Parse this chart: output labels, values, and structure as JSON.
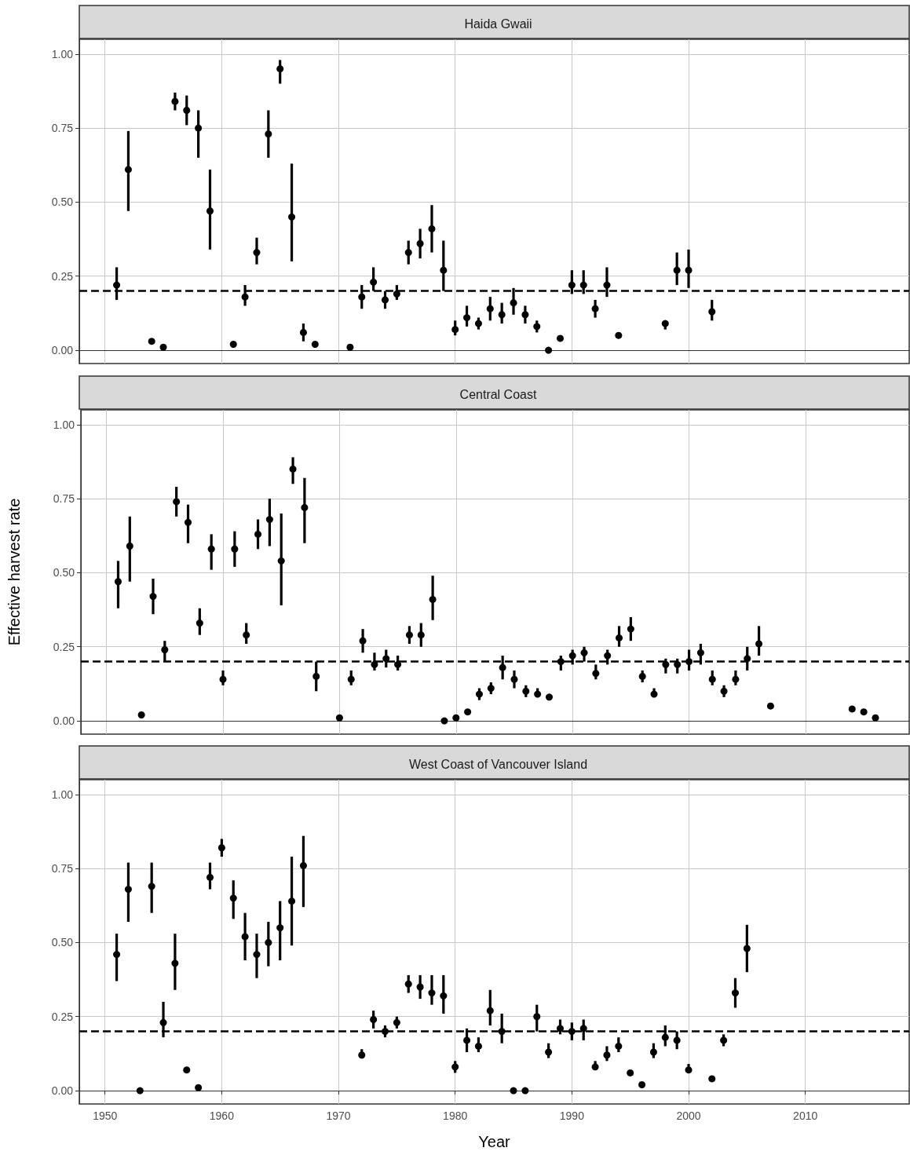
{
  "chart_data": [
    {
      "type": "scatter",
      "title": "Haida Gwaii",
      "tick_labels": "y",
      "grid": true,
      "marker": "circle",
      "xlim": [
        1947.8,
        2018.9
      ],
      "ylim": [
        -0.045,
        1.05
      ],
      "xticks": [
        1950,
        1960,
        1970,
        1980,
        1990,
        2000,
        2010
      ],
      "yticks": [
        {
          "value": 0,
          "label": "0.00"
        },
        {
          "value": 0.25,
          "label": "0.25"
        },
        {
          "value": 0.5,
          "label": "0.50"
        },
        {
          "value": 0.75,
          "label": "0.75"
        },
        {
          "value": 1,
          "label": "1.00"
        }
      ],
      "ref_lines": [
        {
          "axis": "y",
          "value": 0.2,
          "line_style": "dashed",
          "color": "#000000"
        }
      ],
      "series": [
        {
          "color": "#000000",
          "x": [
            1951,
            1952,
            1954,
            1955,
            1956,
            1957,
            1958,
            1959,
            1961,
            1962,
            1963,
            1964,
            1965,
            1966,
            1967,
            1968,
            1971,
            1972,
            1973,
            1974,
            1975,
            1976,
            1977,
            1978,
            1979,
            1980,
            1981,
            1982,
            1983,
            1984,
            1985,
            1986,
            1987,
            1988,
            1989,
            1990,
            1991,
            1992,
            1993,
            1994,
            1998,
            1999,
            2000,
            2002
          ],
          "values": [
            0.22,
            0.61,
            0.03,
            0.01,
            0.84,
            0.81,
            0.75,
            0.47,
            0.02,
            0.18,
            0.33,
            0.73,
            0.95,
            0.45,
            0.06,
            0.02,
            0.01,
            0.18,
            0.23,
            0.17,
            0.19,
            0.33,
            0.36,
            0.41,
            0.27,
            0.07,
            0.11,
            0.09,
            0.14,
            0.12,
            0.16,
            0.12,
            0.08,
            0.0,
            0.04,
            0.22,
            0.22,
            0.14,
            0.22,
            0.05,
            0.09,
            0.27,
            0.27,
            0.13
          ],
          "errors": [
            [
              0.17,
              0.28
            ],
            [
              0.47,
              0.74
            ],
            null,
            null,
            [
              0.81,
              0.87
            ],
            [
              0.76,
              0.86
            ],
            [
              0.65,
              0.81
            ],
            [
              0.34,
              0.61
            ],
            null,
            [
              0.15,
              0.22
            ],
            [
              0.29,
              0.38
            ],
            [
              0.65,
              0.81
            ],
            [
              0.9,
              0.98
            ],
            [
              0.3,
              0.63
            ],
            [
              0.03,
              0.09
            ],
            null,
            null,
            [
              0.14,
              0.22
            ],
            [
              0.2,
              0.28
            ],
            [
              0.14,
              0.2
            ],
            [
              0.17,
              0.22
            ],
            [
              0.29,
              0.37
            ],
            [
              0.31,
              0.41
            ],
            [
              0.33,
              0.49
            ],
            [
              0.2,
              0.37
            ],
            [
              0.05,
              0.1
            ],
            [
              0.08,
              0.15
            ],
            [
              0.07,
              0.11
            ],
            [
              0.1,
              0.18
            ],
            [
              0.09,
              0.16
            ],
            [
              0.12,
              0.21
            ],
            [
              0.09,
              0.15
            ],
            [
              0.06,
              0.1
            ],
            null,
            null,
            [
              0.19,
              0.27
            ],
            [
              0.19,
              0.27
            ],
            [
              0.11,
              0.17
            ],
            [
              0.18,
              0.28
            ],
            null,
            [
              0.07,
              0.1
            ],
            [
              0.22,
              0.33
            ],
            [
              0.21,
              0.34
            ],
            [
              0.1,
              0.17
            ]
          ]
        }
      ]
    },
    {
      "type": "scatter",
      "title": "Central Coast",
      "ylabel": "Effective harvest rate",
      "tick_labels": "y",
      "grid": true,
      "marker": "circle",
      "xlim": [
        1947.8,
        2018.9
      ],
      "ylim": [
        -0.045,
        1.05
      ],
      "xticks": [
        1950,
        1960,
        1970,
        1980,
        1990,
        2000,
        2010
      ],
      "yticks": [
        {
          "value": 0,
          "label": "0.00"
        },
        {
          "value": 0.25,
          "label": "0.25"
        },
        {
          "value": 0.5,
          "label": "0.50"
        },
        {
          "value": 0.75,
          "label": "0.75"
        },
        {
          "value": 1,
          "label": "1.00"
        }
      ],
      "ref_lines": [
        {
          "axis": "y",
          "value": 0.2,
          "line_style": "dashed",
          "color": "#000000"
        }
      ],
      "series": [
        {
          "color": "#000000",
          "x": [
            1951,
            1952,
            1953,
            1954,
            1955,
            1956,
            1957,
            1958,
            1959,
            1960,
            1961,
            1962,
            1963,
            1964,
            1965,
            1966,
            1967,
            1968,
            1970,
            1971,
            1972,
            1973,
            1974,
            1975,
            1976,
            1977,
            1978,
            1979,
            1980,
            1981,
            1982,
            1983,
            1984,
            1985,
            1986,
            1987,
            1988,
            1989,
            1990,
            1991,
            1992,
            1993,
            1994,
            1995,
            1996,
            1997,
            1998,
            1999,
            2000,
            2001,
            2002,
            2003,
            2004,
            2005,
            2006,
            2007,
            2014,
            2015,
            2016
          ],
          "values": [
            0.47,
            0.59,
            0.02,
            0.42,
            0.24,
            0.74,
            0.67,
            0.33,
            0.58,
            0.14,
            0.58,
            0.29,
            0.63,
            0.68,
            0.54,
            0.85,
            0.72,
            0.15,
            0.01,
            0.14,
            0.27,
            0.19,
            0.21,
            0.19,
            0.29,
            0.29,
            0.41,
            0.0,
            0.01,
            0.03,
            0.09,
            0.11,
            0.18,
            0.14,
            0.1,
            0.09,
            0.08,
            0.2,
            0.22,
            0.23,
            0.16,
            0.22,
            0.28,
            0.31,
            0.15,
            0.09,
            0.19,
            0.19,
            0.2,
            0.23,
            0.14,
            0.1,
            0.14,
            0.21,
            0.26,
            0.05,
            0.04,
            0.03,
            0.01
          ],
          "errors": [
            [
              0.38,
              0.54
            ],
            [
              0.47,
              0.69
            ],
            null,
            [
              0.36,
              0.48
            ],
            [
              0.2,
              0.27
            ],
            [
              0.69,
              0.79
            ],
            [
              0.6,
              0.73
            ],
            [
              0.29,
              0.38
            ],
            [
              0.51,
              0.63
            ],
            [
              0.12,
              0.17
            ],
            [
              0.52,
              0.64
            ],
            [
              0.26,
              0.33
            ],
            [
              0.58,
              0.68
            ],
            [
              0.59,
              0.75
            ],
            [
              0.39,
              0.7
            ],
            [
              0.8,
              0.89
            ],
            [
              0.6,
              0.82
            ],
            [
              0.1,
              0.2
            ],
            null,
            [
              0.12,
              0.17
            ],
            [
              0.23,
              0.31
            ],
            [
              0.17,
              0.23
            ],
            [
              0.18,
              0.24
            ],
            [
              0.17,
              0.22
            ],
            [
              0.26,
              0.32
            ],
            [
              0.25,
              0.33
            ],
            [
              0.34,
              0.49
            ],
            null,
            null,
            null,
            [
              0.07,
              0.11
            ],
            [
              0.09,
              0.13
            ],
            [
              0.14,
              0.22
            ],
            [
              0.11,
              0.17
            ],
            [
              0.08,
              0.12
            ],
            [
              0.08,
              0.11
            ],
            [
              0.07,
              0.09
            ],
            [
              0.17,
              0.22
            ],
            [
              0.19,
              0.24
            ],
            [
              0.2,
              0.25
            ],
            [
              0.14,
              0.19
            ],
            [
              0.19,
              0.24
            ],
            [
              0.25,
              0.32
            ],
            [
              0.27,
              0.35
            ],
            [
              0.13,
              0.17
            ],
            [
              0.08,
              0.11
            ],
            [
              0.16,
              0.21
            ],
            [
              0.16,
              0.21
            ],
            [
              0.17,
              0.24
            ],
            [
              0.19,
              0.26
            ],
            [
              0.12,
              0.17
            ],
            [
              0.08,
              0.12
            ],
            [
              0.12,
              0.17
            ],
            [
              0.17,
              0.25
            ],
            [
              0.22,
              0.32
            ],
            null,
            null,
            null,
            null
          ]
        }
      ]
    },
    {
      "type": "scatter",
      "title": "West Coast of Vancouver Island",
      "xlabel": "Year",
      "grid": true,
      "marker": "circle",
      "xlim": [
        1947.8,
        2018.9
      ],
      "ylim": [
        -0.045,
        1.05
      ],
      "xticks": [
        1950,
        1960,
        1970,
        1980,
        1990,
        2000,
        2010
      ],
      "yticks": [
        {
          "value": 0,
          "label": "0.00"
        },
        {
          "value": 0.25,
          "label": "0.25"
        },
        {
          "value": 0.5,
          "label": "0.50"
        },
        {
          "value": 0.75,
          "label": "0.75"
        },
        {
          "value": 1,
          "label": "1.00"
        }
      ],
      "ref_lines": [
        {
          "axis": "y",
          "value": 0.2,
          "line_style": "dashed",
          "color": "#000000"
        }
      ],
      "series": [
        {
          "color": "#000000",
          "x": [
            1951,
            1952,
            1953,
            1954,
            1955,
            1956,
            1957,
            1958,
            1959,
            1960,
            1961,
            1962,
            1963,
            1964,
            1965,
            1966,
            1967,
            1972,
            1973,
            1974,
            1975,
            1976,
            1977,
            1978,
            1979,
            1980,
            1981,
            1982,
            1983,
            1984,
            1985,
            1986,
            1987,
            1988,
            1989,
            1990,
            1991,
            1992,
            1993,
            1994,
            1995,
            1996,
            1997,
            1998,
            1999,
            2000,
            2002,
            2003,
            2004,
            2005
          ],
          "values": [
            0.46,
            0.68,
            0.0,
            0.69,
            0.23,
            0.43,
            0.07,
            0.01,
            0.72,
            0.82,
            0.65,
            0.52,
            0.46,
            0.5,
            0.55,
            0.64,
            0.76,
            0.12,
            0.24,
            0.2,
            0.23,
            0.36,
            0.35,
            0.33,
            0.32,
            0.08,
            0.17,
            0.15,
            0.27,
            0.2,
            0.0,
            0.0,
            0.25,
            0.13,
            0.21,
            0.2,
            0.21,
            0.08,
            0.12,
            0.15,
            0.06,
            0.02,
            0.13,
            0.18,
            0.17,
            0.07,
            0.04,
            0.17,
            0.33,
            0.48
          ],
          "errors": [
            [
              0.37,
              0.53
            ],
            [
              0.57,
              0.77
            ],
            null,
            [
              0.6,
              0.77
            ],
            [
              0.18,
              0.3
            ],
            [
              0.34,
              0.53
            ],
            [
              0.06,
              0.08
            ],
            null,
            [
              0.68,
              0.77
            ],
            [
              0.79,
              0.85
            ],
            [
              0.58,
              0.71
            ],
            [
              0.44,
              0.6
            ],
            [
              0.38,
              0.53
            ],
            [
              0.42,
              0.57
            ],
            [
              0.44,
              0.64
            ],
            [
              0.49,
              0.79
            ],
            [
              0.62,
              0.86
            ],
            [
              0.11,
              0.14
            ],
            [
              0.21,
              0.27
            ],
            [
              0.18,
              0.22
            ],
            [
              0.21,
              0.25
            ],
            [
              0.33,
              0.39
            ],
            [
              0.31,
              0.39
            ],
            [
              0.29,
              0.39
            ],
            [
              0.26,
              0.39
            ],
            [
              0.06,
              0.1
            ],
            [
              0.13,
              0.21
            ],
            [
              0.13,
              0.18
            ],
            [
              0.22,
              0.34
            ],
            [
              0.16,
              0.26
            ],
            null,
            null,
            [
              0.2,
              0.29
            ],
            [
              0.11,
              0.16
            ],
            [
              0.19,
              0.24
            ],
            [
              0.17,
              0.23
            ],
            [
              0.17,
              0.24
            ],
            [
              0.07,
              0.1
            ],
            [
              0.1,
              0.15
            ],
            [
              0.13,
              0.18
            ],
            null,
            null,
            [
              0.11,
              0.16
            ],
            [
              0.15,
              0.22
            ],
            [
              0.14,
              0.2
            ],
            [
              0.06,
              0.09
            ],
            null,
            [
              0.15,
              0.19
            ],
            [
              0.28,
              0.38
            ],
            [
              0.4,
              0.56
            ]
          ]
        }
      ]
    }
  ]
}
